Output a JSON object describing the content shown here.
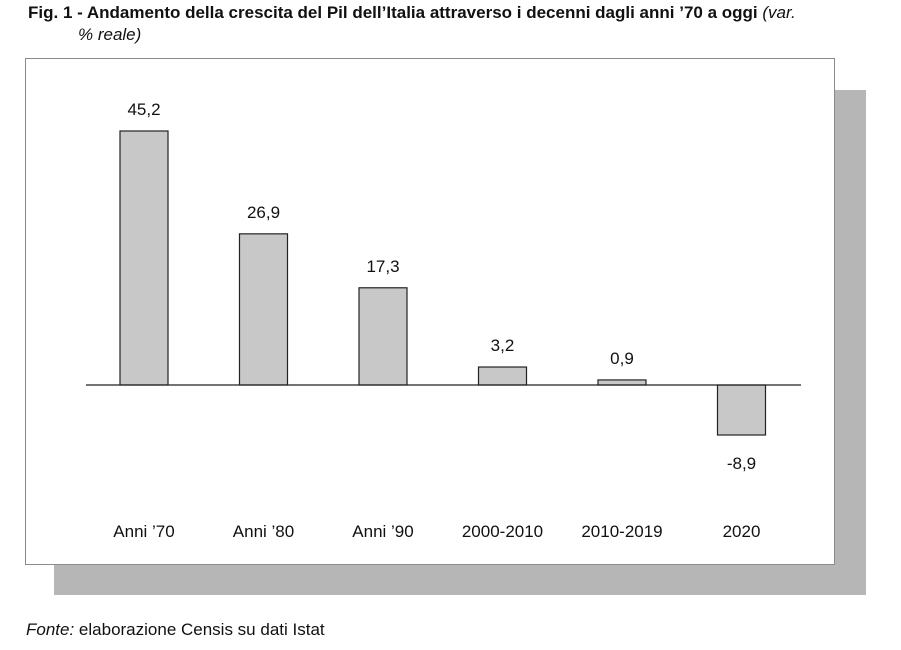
{
  "title": {
    "main": "Fig. 1 - Andamento della crescita del Pil dell’Italia attraverso i decenni dagli anni ’70 a oggi",
    "suffix_line1": "(var.",
    "suffix_line2": "% reale)"
  },
  "source": {
    "label": "Fonte:",
    "text": " elaborazione Censis su dati Istat"
  },
  "colors": {
    "bar_fill": "#c8c8c8",
    "bar_stroke": "#222222",
    "shadow": "#b6b6b6"
  },
  "chart_data": {
    "type": "bar",
    "categories": [
      "Anni ’70",
      "Anni ’80",
      "Anni ’90",
      "2000-2010",
      "2010-2019",
      "2020"
    ],
    "values": [
      45.2,
      26.9,
      17.3,
      3.2,
      0.9,
      -8.9
    ],
    "value_labels": [
      "45,2",
      "26,9",
      "17,3",
      "3,2",
      "0,9",
      "-8,9"
    ],
    "ylim": [
      -8.9,
      45.2
    ],
    "grid": false,
    "legend": "none",
    "axis": "zero-line only"
  }
}
